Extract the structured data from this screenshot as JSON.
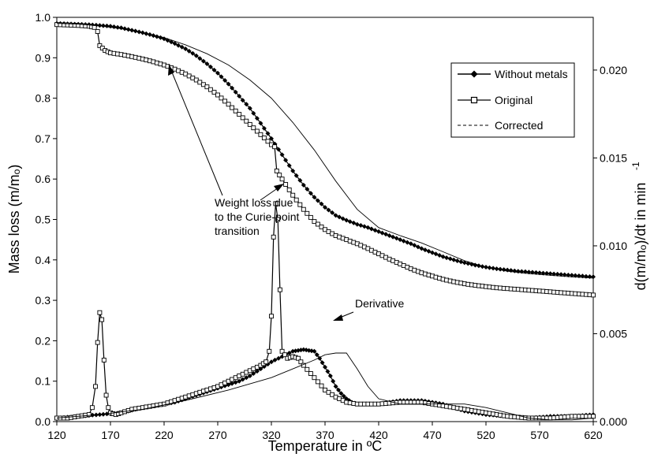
{
  "chart_data": {
    "type": "line",
    "title": "",
    "xlabel": "Temperature in ºC",
    "ylabel": "Mass loss (m/mₒ)",
    "y2label": "d(m/mₒ)/dt in min",
    "y2label_sup": "-1",
    "xlim": [
      120,
      620
    ],
    "ylim": [
      0,
      1.0
    ],
    "y2lim": [
      0,
      0.023
    ],
    "xticks": [
      "120",
      "170",
      "220",
      "270",
      "320",
      "370",
      "420",
      "470",
      "520",
      "570",
      "620"
    ],
    "yticks": [
      "0.0",
      "0.1",
      "0.2",
      "0.3",
      "0.4",
      "0.5",
      "0.6",
      "0.7",
      "0.8",
      "0.9",
      "1.0"
    ],
    "y2ticks": [
      "0.000",
      "0.005",
      "0.010",
      "0.015",
      "0.020"
    ],
    "legend": {
      "position": "top-right",
      "items": [
        {
          "name": "Without metals",
          "marker": "diamond",
          "style": "solid"
        },
        {
          "name": "Original",
          "marker": "square",
          "style": "solid"
        },
        {
          "name": "Corrected",
          "marker": "none",
          "style": "dashed"
        }
      ]
    },
    "annotations": [
      {
        "text_lines": [
          "Weight loss due",
          "to the Curie-point",
          "transition"
        ]
      },
      {
        "text_lines": [
          "Derivative"
        ]
      }
    ],
    "series": [
      {
        "name": "Without metals",
        "kind": "mass",
        "marker": "diamond",
        "x": [
          120,
          130,
          140,
          150,
          160,
          170,
          180,
          190,
          200,
          210,
          220,
          230,
          240,
          250,
          260,
          270,
          280,
          290,
          300,
          310,
          320,
          330,
          340,
          350,
          360,
          370,
          380,
          390,
          400,
          410,
          420,
          430,
          440,
          450,
          460,
          470,
          480,
          490,
          500,
          510,
          520,
          530,
          540,
          550,
          560,
          570,
          580,
          590,
          600,
          610,
          620
        ],
        "y": [
          0.985,
          0.984,
          0.983,
          0.982,
          0.98,
          0.978,
          0.974,
          0.968,
          0.962,
          0.955,
          0.947,
          0.935,
          0.922,
          0.905,
          0.885,
          0.862,
          0.835,
          0.805,
          0.775,
          0.738,
          0.7,
          0.66,
          0.62,
          0.585,
          0.555,
          0.53,
          0.51,
          0.498,
          0.488,
          0.48,
          0.47,
          0.46,
          0.45,
          0.44,
          0.428,
          0.418,
          0.408,
          0.4,
          0.393,
          0.387,
          0.382,
          0.378,
          0.375,
          0.372,
          0.37,
          0.368,
          0.366,
          0.364,
          0.362,
          0.36,
          0.358
        ]
      },
      {
        "name": "Original",
        "kind": "mass",
        "marker": "square",
        "x": [
          120,
          130,
          140,
          150,
          155,
          158,
          160,
          165,
          170,
          180,
          190,
          200,
          210,
          220,
          230,
          240,
          250,
          260,
          270,
          280,
          290,
          300,
          310,
          320,
          323,
          325,
          330,
          340,
          350,
          360,
          370,
          380,
          390,
          400,
          410,
          420,
          430,
          440,
          450,
          460,
          470,
          480,
          490,
          500,
          510,
          520,
          530,
          540,
          550,
          560,
          570,
          580,
          590,
          600,
          610,
          620
        ],
        "y": [
          0.982,
          0.981,
          0.98,
          0.978,
          0.975,
          0.965,
          0.93,
          0.918,
          0.912,
          0.908,
          0.903,
          0.897,
          0.89,
          0.882,
          0.872,
          0.86,
          0.845,
          0.828,
          0.808,
          0.785,
          0.76,
          0.735,
          0.71,
          0.685,
          0.68,
          0.62,
          0.6,
          0.56,
          0.525,
          0.495,
          0.475,
          0.46,
          0.45,
          0.44,
          0.428,
          0.415,
          0.402,
          0.39,
          0.378,
          0.368,
          0.36,
          0.352,
          0.346,
          0.341,
          0.337,
          0.334,
          0.331,
          0.329,
          0.327,
          0.325,
          0.323,
          0.321,
          0.319,
          0.317,
          0.315,
          0.313
        ]
      },
      {
        "name": "Corrected",
        "kind": "mass",
        "marker": "none",
        "x": [
          120,
          140,
          160,
          180,
          200,
          220,
          240,
          260,
          280,
          300,
          320,
          340,
          360,
          380,
          400,
          420,
          440,
          460,
          480,
          500,
          520,
          540,
          560,
          580,
          600,
          620
        ],
        "y": [
          0.985,
          0.983,
          0.979,
          0.972,
          0.962,
          0.95,
          0.932,
          0.91,
          0.882,
          0.845,
          0.8,
          0.74,
          0.672,
          0.595,
          0.525,
          0.48,
          0.46,
          0.442,
          0.42,
          0.398,
          0.382,
          0.372,
          0.366,
          0.362,
          0.358,
          0.355
        ]
      },
      {
        "name": "Without metals",
        "kind": "derivative",
        "marker": "diamond",
        "x": [
          120,
          140,
          160,
          180,
          200,
          210,
          220,
          230,
          240,
          250,
          260,
          270,
          280,
          290,
          300,
          310,
          320,
          330,
          340,
          345,
          350,
          355,
          360,
          365,
          370,
          375,
          380,
          385,
          390,
          395,
          400,
          410,
          420,
          430,
          440,
          450,
          460,
          470,
          480,
          490,
          500,
          510,
          520,
          540,
          560,
          580,
          600,
          620
        ],
        "y": [
          0.0002,
          0.0003,
          0.0004,
          0.0005,
          0.0008,
          0.0009,
          0.001,
          0.0011,
          0.0013,
          0.0015,
          0.0017,
          0.0019,
          0.0021,
          0.0023,
          0.0026,
          0.003,
          0.0034,
          0.0037,
          0.004,
          0.00405,
          0.0041,
          0.00405,
          0.004,
          0.0036,
          0.0031,
          0.0026,
          0.002,
          0.0016,
          0.0013,
          0.0011,
          0.001,
          0.001,
          0.001,
          0.0011,
          0.0012,
          0.0012,
          0.0012,
          0.0011,
          0.001,
          0.0008,
          0.0006,
          0.0005,
          0.0004,
          0.0003,
          0.0002,
          0.0003,
          0.0003,
          0.0004
        ]
      },
      {
        "name": "Original",
        "kind": "derivative",
        "marker": "square",
        "x": [
          120,
          130,
          140,
          150,
          153,
          156,
          158,
          160,
          162,
          164,
          166,
          168,
          170,
          175,
          180,
          190,
          200,
          210,
          220,
          230,
          240,
          250,
          260,
          270,
          280,
          290,
          300,
          310,
          315,
          318,
          320,
          322,
          324,
          326,
          328,
          330,
          335,
          340,
          345,
          350,
          360,
          370,
          380,
          390,
          400,
          420,
          440,
          460,
          480,
          500,
          520,
          540,
          560,
          580,
          600,
          620
        ],
        "y": [
          0.0002,
          0.0002,
          0.0003,
          0.0004,
          0.0008,
          0.002,
          0.0045,
          0.0062,
          0.0058,
          0.0035,
          0.0015,
          0.0008,
          0.0005,
          0.0004,
          0.0005,
          0.0007,
          0.0008,
          0.0009,
          0.001,
          0.0012,
          0.0014,
          0.0016,
          0.0018,
          0.002,
          0.0023,
          0.0026,
          0.0029,
          0.0032,
          0.0034,
          0.004,
          0.006,
          0.0105,
          0.0124,
          0.0115,
          0.0075,
          0.004,
          0.0036,
          0.0037,
          0.0036,
          0.0032,
          0.0025,
          0.0018,
          0.0014,
          0.0011,
          0.001,
          0.001,
          0.0011,
          0.0011,
          0.0009,
          0.0007,
          0.0005,
          0.0003,
          0.0002,
          0.0002,
          0.0003,
          0.0003
        ]
      },
      {
        "name": "Corrected",
        "kind": "derivative",
        "marker": "none",
        "x": [
          120,
          160,
          200,
          240,
          280,
          320,
          340,
          360,
          370,
          380,
          390,
          400,
          410,
          420,
          440,
          460,
          480,
          500,
          520,
          540,
          560,
          580,
          600,
          620
        ],
        "y": [
          0.0002,
          0.0004,
          0.0007,
          0.0012,
          0.0018,
          0.0025,
          0.003,
          0.0035,
          0.0038,
          0.0039,
          0.0039,
          0.003,
          0.002,
          0.0013,
          0.001,
          0.001,
          0.001,
          0.001,
          0.0008,
          0.0005,
          0.0002,
          0.0001,
          0.0001,
          0.0002
        ]
      }
    ]
  }
}
